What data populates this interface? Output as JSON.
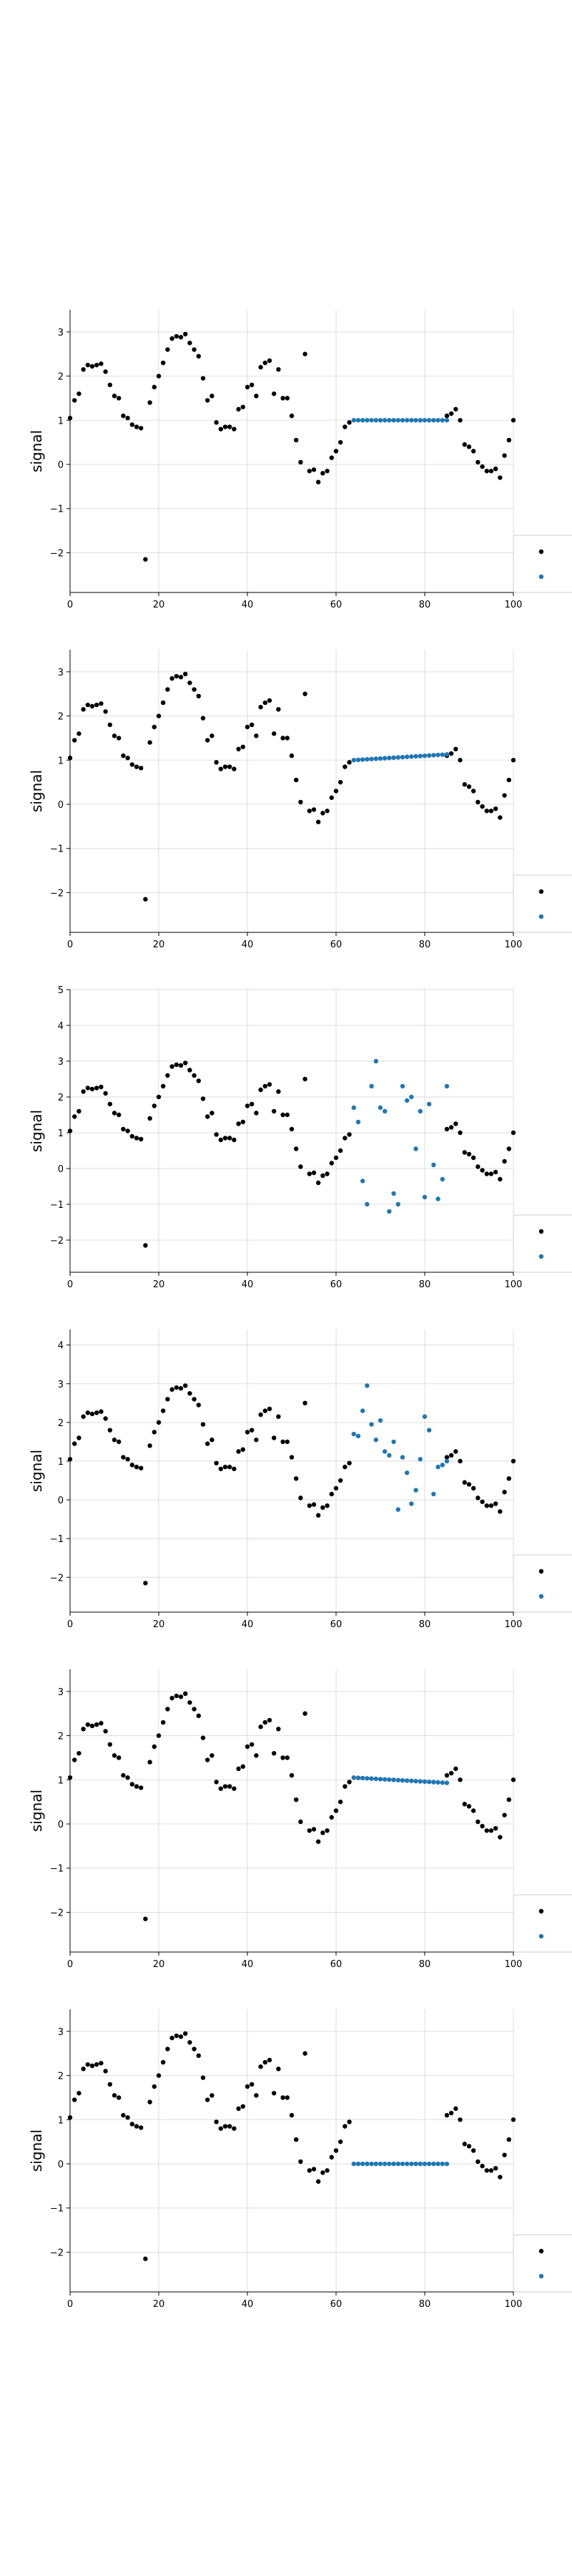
{
  "chart_data": [
    {
      "type": "scatter",
      "ylabel": "signal",
      "xlim": [
        0,
        100
      ],
      "ylim": [
        -2.9,
        3.5
      ],
      "xticks": [
        0,
        20,
        40,
        60,
        80,
        100
      ],
      "yticks": [
        -2,
        -1,
        0,
        1,
        2,
        3
      ],
      "grid": true,
      "legend": "bottom-right",
      "colors": {
        "observed": "#000000",
        "imputed": "#1f77b4"
      },
      "gap": {
        "type": "constant",
        "value": 1.0
      }
    },
    {
      "type": "scatter",
      "ylabel": "signal",
      "xlim": [
        0,
        100
      ],
      "ylim": [
        -2.9,
        3.5
      ],
      "xticks": [
        0,
        20,
        40,
        60,
        80,
        100
      ],
      "yticks": [
        -2,
        -1,
        0,
        1,
        2,
        3
      ],
      "grid": true,
      "legend": "bottom-right",
      "colors": {
        "observed": "#000000",
        "imputed": "#1f77b4"
      },
      "gap": {
        "type": "linear",
        "start": 1.0,
        "end": 1.13
      }
    },
    {
      "type": "scatter",
      "ylabel": "signal",
      "xlim": [
        0,
        100
      ],
      "ylim": [
        -2.9,
        5.0
      ],
      "xticks": [
        0,
        20,
        40,
        60,
        80,
        100
      ],
      "yticks": [
        -2,
        -1,
        0,
        1,
        2,
        3,
        4,
        5
      ],
      "grid": true,
      "legend": "bottom-right",
      "colors": {
        "observed": "#000000",
        "imputed": "#1f77b4"
      },
      "gap": {
        "type": "values",
        "y": [
          1.7,
          1.3,
          -0.35,
          -1.0,
          2.3,
          3.0,
          1.7,
          1.6,
          -1.2,
          -0.7,
          -1.0,
          2.3,
          1.9,
          2.0,
          0.55,
          1.6,
          -0.8,
          1.8,
          0.1,
          -0.85,
          -0.3,
          2.3
        ]
      }
    },
    {
      "type": "scatter",
      "ylabel": "signal",
      "xlim": [
        0,
        100
      ],
      "ylim": [
        -2.9,
        4.4
      ],
      "xticks": [
        0,
        20,
        40,
        60,
        80,
        100
      ],
      "yticks": [
        -2,
        -1,
        0,
        1,
        2,
        3,
        4
      ],
      "grid": true,
      "legend": "bottom-right",
      "colors": {
        "observed": "#000000",
        "imputed": "#1f77b4"
      },
      "gap": {
        "type": "values",
        "y": [
          1.7,
          1.65,
          2.3,
          2.95,
          1.95,
          1.55,
          2.05,
          1.25,
          1.15,
          1.5,
          -0.25,
          1.1,
          0.7,
          -0.1,
          0.25,
          1.05,
          2.15,
          1.8,
          0.15,
          0.85,
          0.9,
          1.0
        ]
      }
    },
    {
      "type": "scatter",
      "ylabel": "signal",
      "xlim": [
        0,
        100
      ],
      "ylim": [
        -2.9,
        3.5
      ],
      "xticks": [
        0,
        20,
        40,
        60,
        80,
        100
      ],
      "yticks": [
        -2,
        -1,
        0,
        1,
        2,
        3
      ],
      "grid": true,
      "legend": "bottom-right",
      "colors": {
        "observed": "#000000",
        "imputed": "#1f77b4"
      },
      "gap": {
        "type": "linear",
        "start": 1.05,
        "end": 0.93
      }
    },
    {
      "type": "scatter",
      "ylabel": "signal",
      "xlim": [
        0,
        100
      ],
      "ylim": [
        -2.9,
        3.5
      ],
      "xticks": [
        0,
        20,
        40,
        60,
        80,
        100
      ],
      "yticks": [
        -2,
        -1,
        0,
        1,
        2,
        3
      ],
      "grid": true,
      "legend": "bottom-right",
      "colors": {
        "observed": "#000000",
        "imputed": "#1f77b4"
      },
      "gap": {
        "type": "constant",
        "value": 0.0
      }
    }
  ],
  "observed_series": {
    "x": [
      0,
      1,
      2,
      3,
      4,
      5,
      6,
      7,
      8,
      9,
      10,
      11,
      12,
      13,
      14,
      15,
      16,
      17,
      18,
      19,
      20,
      21,
      22,
      23,
      24,
      25,
      26,
      27,
      28,
      29,
      30,
      31,
      32,
      33,
      34,
      35,
      36,
      37,
      38,
      39,
      40,
      41,
      42,
      43,
      44,
      45,
      46,
      47,
      48,
      49,
      50,
      51,
      52,
      53,
      54,
      55,
      56,
      57,
      58,
      59,
      60,
      61,
      62,
      63,
      85,
      86,
      87,
      88,
      89,
      90,
      91,
      92,
      93,
      94,
      95,
      96,
      97,
      98,
      99,
      100
    ],
    "y": [
      1.05,
      1.45,
      1.6,
      2.15,
      2.25,
      2.22,
      2.25,
      2.28,
      2.1,
      1.8,
      1.55,
      1.5,
      1.1,
      1.05,
      0.9,
      0.85,
      0.82,
      -2.15,
      1.4,
      1.75,
      2.0,
      2.3,
      2.6,
      2.85,
      2.9,
      2.88,
      2.95,
      2.75,
      2.6,
      2.45,
      1.95,
      1.45,
      1.55,
      0.95,
      0.8,
      0.85,
      0.85,
      0.8,
      1.25,
      1.3,
      1.75,
      1.8,
      1.55,
      2.2,
      2.3,
      2.35,
      1.6,
      2.15,
      1.5,
      1.5,
      1.1,
      0.55,
      0.05,
      2.5,
      -0.15,
      -0.12,
      -0.4,
      -0.2,
      -0.15,
      0.15,
      0.3,
      0.5,
      0.85,
      0.95,
      1.1,
      1.15,
      1.25,
      1.0,
      0.45,
      0.4,
      0.3,
      0.05,
      -0.05,
      -0.15,
      -0.15,
      -0.1,
      -0.3,
      0.2,
      0.55,
      1.0
    ]
  },
  "imputed_x": [
    64,
    65,
    66,
    67,
    68,
    69,
    70,
    71,
    72,
    73,
    74,
    75,
    76,
    77,
    78,
    79,
    80,
    81,
    82,
    83,
    84,
    85
  ]
}
